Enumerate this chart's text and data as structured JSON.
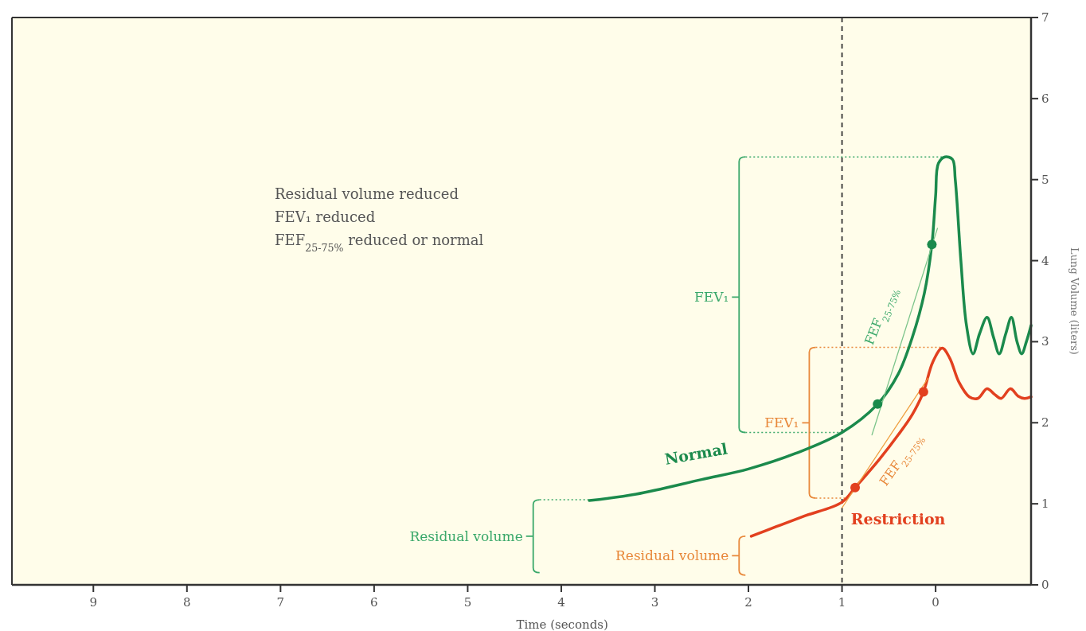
{
  "chart_data": {
    "type": "line",
    "xlabel": "Time (seconds)",
    "ylabel": "Lung Volume (liters)",
    "xlim": [
      9.87,
      -1.02
    ],
    "xticks": [
      9,
      8,
      7,
      6,
      5,
      4,
      3,
      2,
      1,
      0
    ],
    "ylim": [
      0,
      7
    ],
    "yticks": [
      0,
      1,
      2,
      3,
      4,
      5,
      6,
      7
    ],
    "grid": false,
    "legend": false,
    "line_style": "solid",
    "series": [
      {
        "name": "Normal",
        "color": "#1b8a4c",
        "x": [
          3.7,
          3.2,
          2.5,
          2.0,
          1.5,
          1.0,
          0.62,
          0.4,
          0.25,
          0.12,
          0.04,
          0.0,
          -0.03,
          -0.1,
          -0.18,
          -0.21,
          -0.27,
          -0.33,
          -0.4,
          -0.47,
          -0.55,
          -0.62,
          -0.68,
          -0.75,
          -0.81,
          -0.87,
          -0.92,
          -0.97,
          -1.02
        ],
        "values": [
          1.04,
          1.12,
          1.3,
          1.43,
          1.62,
          1.88,
          2.23,
          2.6,
          3.05,
          3.6,
          4.2,
          4.8,
          5.2,
          5.28,
          5.25,
          5.0,
          4.0,
          3.2,
          2.85,
          3.1,
          3.3,
          3.05,
          2.85,
          3.1,
          3.3,
          3.0,
          2.85,
          3.0,
          3.2
        ]
      },
      {
        "name": "Restriction",
        "color": "#e2401f",
        "x": [
          1.97,
          1.7,
          1.4,
          1.0,
          0.86,
          0.6,
          0.4,
          0.25,
          0.13,
          0.03,
          -0.07,
          -0.15,
          -0.25,
          -0.36,
          -0.45,
          -0.55,
          -0.63,
          -0.7,
          -0.8,
          -0.88,
          -0.95,
          -1.02
        ],
        "values": [
          0.6,
          0.72,
          0.85,
          1.02,
          1.2,
          1.55,
          1.85,
          2.1,
          2.38,
          2.75,
          2.92,
          2.8,
          2.5,
          2.32,
          2.3,
          2.42,
          2.35,
          2.3,
          2.42,
          2.33,
          2.3,
          2.32
        ]
      },
      {
        "type": "line",
        "color": "#7cc48a",
        "x": [
          0.68,
          -0.02
        ],
        "values": [
          1.85,
          4.4
        ]
      },
      {
        "type": "line",
        "color": "#f0a040",
        "x": [
          1.0,
          0.08
        ],
        "values": [
          0.95,
          2.55
        ]
      },
      {
        "type": "scatter",
        "color": "#1b8a4c",
        "x": [
          0.62,
          0.04
        ],
        "values": [
          2.23,
          4.2
        ]
      },
      {
        "type": "scatter",
        "color": "#e2401f",
        "x": [
          0.86,
          0.13
        ],
        "values": [
          1.2,
          2.38
        ]
      }
    ],
    "ref_lines": [
      {
        "axis": "x",
        "value": 1,
        "color": "#333333",
        "line_style": "dashed"
      }
    ],
    "annotations": [
      "Residual volume reduced",
      "FEV₁ reduced",
      "FEF$_{25-75%}$ reduced or normal",
      "Residual volume",
      "FEV₁",
      "FEF$_{25-75%}$",
      "FEV₁",
      "Residual volume",
      "FEF$_{25-75%}$"
    ]
  }
}
